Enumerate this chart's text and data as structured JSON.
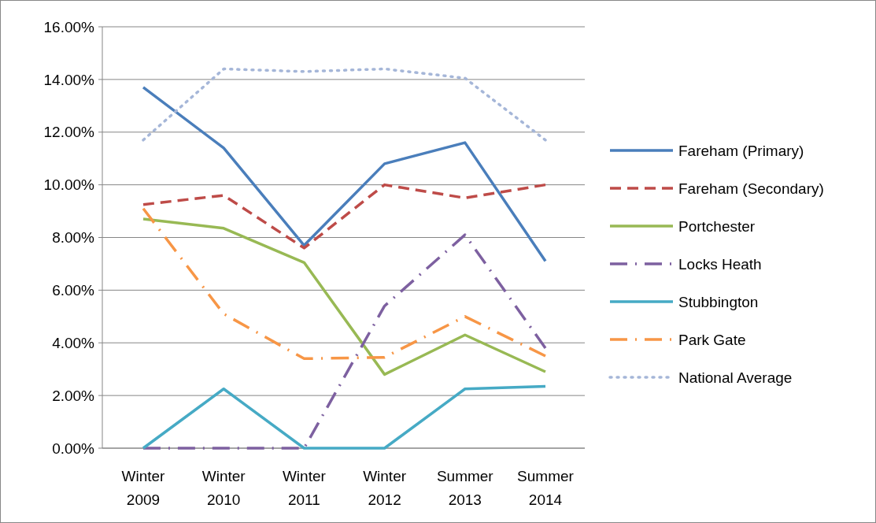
{
  "chart_data": {
    "type": "line",
    "categories": [
      "Winter 2009",
      "Winter 2010",
      "Winter 2011",
      "Winter 2012",
      "Summer 2013",
      "Summer 2014"
    ],
    "ylim": [
      0,
      16
    ],
    "yticks": [
      {
        "value": 0,
        "label": "0.00%"
      },
      {
        "value": 2,
        "label": "2.00%"
      },
      {
        "value": 4,
        "label": "4.00%"
      },
      {
        "value": 6,
        "label": "6.00%"
      },
      {
        "value": 8,
        "label": "8.00%"
      },
      {
        "value": 10,
        "label": "10.00%"
      },
      {
        "value": 12,
        "label": "12.00%"
      },
      {
        "value": 14,
        "label": "14.00%"
      },
      {
        "value": 16,
        "label": "16.00%"
      }
    ],
    "grid": "y",
    "legend": "right",
    "marker": "none",
    "series": [
      {
        "name": "Fareham (Primary)",
        "color": "#4a7ebb",
        "line_style": "solid",
        "values": [
          13.7,
          11.4,
          7.7,
          10.8,
          11.6,
          7.1
        ]
      },
      {
        "name": "Fareham (Secondary)",
        "color": "#be4b48",
        "line_style": "dashed",
        "values": [
          9.25,
          9.6,
          7.6,
          10.0,
          9.5,
          10.0
        ]
      },
      {
        "name": "Portchester",
        "color": "#98b954",
        "line_style": "solid",
        "values": [
          8.7,
          8.35,
          7.05,
          2.8,
          4.3,
          2.9
        ]
      },
      {
        "name": "Locks Heath",
        "color": "#7d60a0",
        "line_style": "dashdot",
        "values": [
          0,
          0,
          0,
          5.4,
          8.1,
          3.8
        ]
      },
      {
        "name": "Stubbington",
        "color": "#46aac5",
        "line_style": "solid",
        "values": [
          0,
          2.25,
          0,
          0,
          2.25,
          2.35
        ]
      },
      {
        "name": "Park Gate",
        "color": "#f79646",
        "line_style": "dashdot",
        "values": [
          9.1,
          5.1,
          3.4,
          3.45,
          5.0,
          3.5
        ]
      },
      {
        "name": "National Average",
        "color": "#a5b6d8",
        "line_style": "dotted",
        "values": [
          11.7,
          14.4,
          14.3,
          14.4,
          14.05,
          11.7
        ]
      }
    ]
  }
}
